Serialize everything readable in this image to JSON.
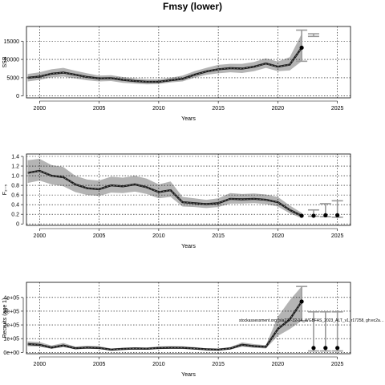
{
  "page": {
    "title": "Fmsy (lower)"
  },
  "chart_data": [
    {
      "type": "line",
      "xlabel": "Years",
      "ylabel": "SSB",
      "xlim": [
        1998.9,
        2026.1
      ],
      "ylim": [
        -500,
        19000
      ],
      "xticks": [
        2000,
        2005,
        2010,
        2015,
        2020,
        2025
      ],
      "yticks": [
        0,
        5000,
        10000,
        15000
      ],
      "grid": true,
      "x": [
        1999,
        2000,
        2001,
        2002,
        2003,
        2004,
        2005,
        2006,
        2007,
        2008,
        2009,
        2010,
        2011,
        2012,
        2013,
        2014,
        2015,
        2016,
        2017,
        2018,
        2019,
        2020,
        2021,
        2022
      ],
      "series": [
        {
          "values": [
            5000,
            5300,
            6100,
            6400,
            5800,
            5200,
            4800,
            4900,
            4400,
            4100,
            3900,
            3900,
            4300,
            4700,
            5800,
            6700,
            7300,
            7600,
            7500,
            8000,
            8900,
            8000,
            8600,
            13200
          ]
        }
      ],
      "band_lower": [
        4000,
        4400,
        5100,
        5300,
        4800,
        4300,
        4000,
        4100,
        3600,
        3400,
        3200,
        3300,
        3700,
        4000,
        5000,
        5800,
        6200,
        6500,
        6300,
        6800,
        7700,
        6800,
        7000,
        9500
      ],
      "band_upper": [
        6000,
        6500,
        7300,
        7700,
        6900,
        6200,
        5600,
        5700,
        5200,
        4800,
        4600,
        4600,
        5000,
        5600,
        6800,
        7700,
        8500,
        8800,
        8800,
        9300,
        10300,
        9400,
        10600,
        17000
      ],
      "last_point": {
        "x": 2022,
        "y": 13200
      },
      "whiskers": [
        {
          "x": 2022,
          "low": 9500,
          "high": 18000
        },
        {
          "x": 2023,
          "low": 16300,
          "high": 17000
        }
      ],
      "forecast_points": []
    },
    {
      "type": "line",
      "xlabel": "Years",
      "ylabel": "F₂₋₅",
      "xlim": [
        1998.9,
        2026.1
      ],
      "ylim": [
        -0.03,
        1.45
      ],
      "xticks": [
        2000,
        2005,
        2010,
        2015,
        2020,
        2025
      ],
      "yticks": [
        0,
        0.2,
        0.4,
        0.6,
        0.8,
        1,
        1.2,
        1.4
      ],
      "yticklabels": [
        "0",
        "0.2",
        "0.4",
        "0.6",
        "0.8",
        "1.0",
        "1.2",
        "1.4"
      ],
      "grid": true,
      "x": [
        1999,
        2000,
        2001,
        2002,
        2003,
        2004,
        2005,
        2006,
        2007,
        2008,
        2009,
        2010,
        2011,
        2012,
        2013,
        2014,
        2015,
        2016,
        2017,
        2018,
        2019,
        2020,
        2021,
        2022
      ],
      "series": [
        {
          "values": [
            1.06,
            1.1,
            1.0,
            0.97,
            0.82,
            0.74,
            0.72,
            0.8,
            0.78,
            0.82,
            0.76,
            0.66,
            0.7,
            0.45,
            0.43,
            0.41,
            0.43,
            0.52,
            0.51,
            0.52,
            0.5,
            0.45,
            0.29,
            0.17
          ]
        }
      ],
      "band_lower": [
        0.85,
        0.9,
        0.82,
        0.78,
        0.66,
        0.6,
        0.58,
        0.65,
        0.64,
        0.67,
        0.62,
        0.53,
        0.56,
        0.36,
        0.35,
        0.33,
        0.35,
        0.42,
        0.42,
        0.43,
        0.41,
        0.36,
        0.22,
        0.12
      ],
      "band_upper": [
        1.32,
        1.35,
        1.22,
        1.18,
        1.0,
        0.92,
        0.9,
        0.98,
        0.96,
        1.0,
        0.94,
        0.82,
        0.88,
        0.56,
        0.53,
        0.5,
        0.53,
        0.64,
        0.62,
        0.63,
        0.61,
        0.56,
        0.38,
        0.23
      ],
      "last_point": {
        "x": 2022,
        "y": 0.17
      },
      "whiskers": [
        {
          "x": 2023,
          "low": 0.16,
          "high": 0.29
        },
        {
          "x": 2024,
          "low": 0.15,
          "high": 0.42
        },
        {
          "x": 2025,
          "low": 0.14,
          "high": 0.48
        }
      ],
      "forecast_points": [
        {
          "x": 2023,
          "y": 0.17
        },
        {
          "x": 2024,
          "y": 0.18
        },
        {
          "x": 2025,
          "y": 0.18
        }
      ]
    },
    {
      "type": "line",
      "xlabel": "Years",
      "ylabel": "Recruits (age 1)",
      "xlim": [
        1998.9,
        2026.1
      ],
      "ylim": [
        -10000.0,
        510000.0
      ],
      "xticks": [
        2000,
        2005,
        2010,
        2015,
        2020,
        2025
      ],
      "yticks": [
        0,
        100000,
        200000,
        300000,
        400000
      ],
      "yticklabels": [
        "0e+00",
        "1e+05",
        "2e+05",
        "3e+05",
        "4e+05"
      ],
      "grid": true,
      "x": [
        1999,
        2000,
        2001,
        2002,
        2003,
        2004,
        2005,
        2006,
        2007,
        2008,
        2009,
        2010,
        2011,
        2012,
        2013,
        2014,
        2015,
        2016,
        2017,
        2018,
        2019,
        2020,
        2021,
        2022
      ],
      "series": [
        {
          "values": [
            60000,
            55000,
            35000,
            50000,
            30000,
            35000,
            32000,
            20000,
            25000,
            28000,
            26000,
            32000,
            34000,
            33000,
            28000,
            22000,
            20000,
            28000,
            55000,
            45000,
            40000,
            170000,
            240000,
            370000
          ]
        }
      ],
      "band_lower": [
        45000,
        42000,
        25000,
        38000,
        22000,
        26000,
        24000,
        14000,
        18000,
        21000,
        19000,
        24000,
        26000,
        25000,
        20000,
        16000,
        14000,
        20000,
        42000,
        33000,
        28000,
        120000,
        170000,
        230000
      ],
      "band_upper": [
        80000,
        75000,
        50000,
        68000,
        42000,
        48000,
        45000,
        28000,
        34000,
        37000,
        35000,
        43000,
        45000,
        44000,
        38000,
        30000,
        28000,
        38000,
        72000,
        60000,
        52000,
        260000,
        380000,
        480000
      ],
      "last_point": {
        "x": 2022,
        "y": 370000
      },
      "whiskers": [
        {
          "x": 2022,
          "low": 230000,
          "high": 480000
        },
        {
          "x": 2023,
          "low": 10000,
          "high": 295000
        },
        {
          "x": 2024,
          "low": 10000,
          "high": 295000
        },
        {
          "x": 2025,
          "low": 10000,
          "high": 295000
        }
      ],
      "forecast_points": [
        {
          "x": 2023,
          "y": 32000
        },
        {
          "x": 2024,
          "y": 32000
        },
        {
          "x": 2025,
          "y": 32000
        }
      ],
      "annotation": "stockassessment.org (sla277-32-14_WGBFAS_2023_ALT_v1, r17258, gh:ec2a…"
    }
  ]
}
